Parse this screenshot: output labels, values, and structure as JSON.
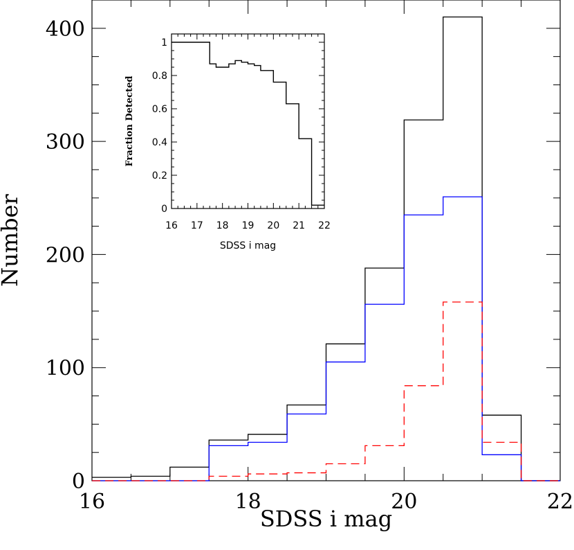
{
  "chart_data": [
    {
      "type": "histogram",
      "xlabel": "SDSS i mag",
      "ylabel": "Number",
      "xlim": [
        16,
        22
      ],
      "ylim": [
        0,
        400
      ],
      "ylim_top": 425,
      "x_ticks_major": [
        16,
        18,
        20,
        22
      ],
      "y_ticks_major": [
        0,
        100,
        200,
        300,
        400
      ],
      "bin_edges": [
        16,
        16.5,
        17,
        17.5,
        18,
        18.5,
        19,
        19.5,
        20,
        20.5,
        21,
        21.5,
        22
      ],
      "series": [
        {
          "color": "#000000",
          "style": "solid",
          "values": [
            3,
            4,
            12,
            36,
            41,
            67,
            121,
            188,
            319,
            410,
            58,
            0
          ]
        },
        {
          "color": "#0000ff",
          "style": "solid",
          "values": [
            0,
            0,
            0,
            31,
            34,
            59,
            105,
            156,
            235,
            251,
            23,
            0
          ]
        },
        {
          "color": "#ff0000",
          "style": "dashed",
          "values": [
            0,
            0,
            0,
            4,
            6,
            7,
            15,
            31,
            84,
            158,
            34,
            0
          ]
        }
      ]
    },
    {
      "type": "histogram",
      "xlabel": "SDSS i mag",
      "ylabel": "Fraction Detected",
      "xlim": [
        16,
        22
      ],
      "ylim": [
        0,
        1
      ],
      "ylim_top": 1.05,
      "x_ticks_major": [
        16,
        17,
        18,
        19,
        20,
        21,
        22
      ],
      "y_ticks_major": [
        0,
        0.2,
        0.4,
        0.6,
        0.8,
        1
      ],
      "y_tick_labels": [
        "0",
        "0.2",
        "0.4",
        "0.6",
        "0.8",
        "1"
      ],
      "bin_edges": [
        16,
        17.5,
        17.75,
        18,
        18.25,
        18.5,
        18.75,
        19,
        19.25,
        19.5,
        20,
        20.5,
        21,
        21.5,
        22
      ],
      "series": [
        {
          "color": "#000000",
          "style": "solid",
          "values": [
            1.0,
            0.87,
            0.85,
            0.85,
            0.87,
            0.89,
            0.88,
            0.87,
            0.86,
            0.83,
            0.76,
            0.63,
            0.42,
            0.02
          ]
        }
      ]
    }
  ]
}
